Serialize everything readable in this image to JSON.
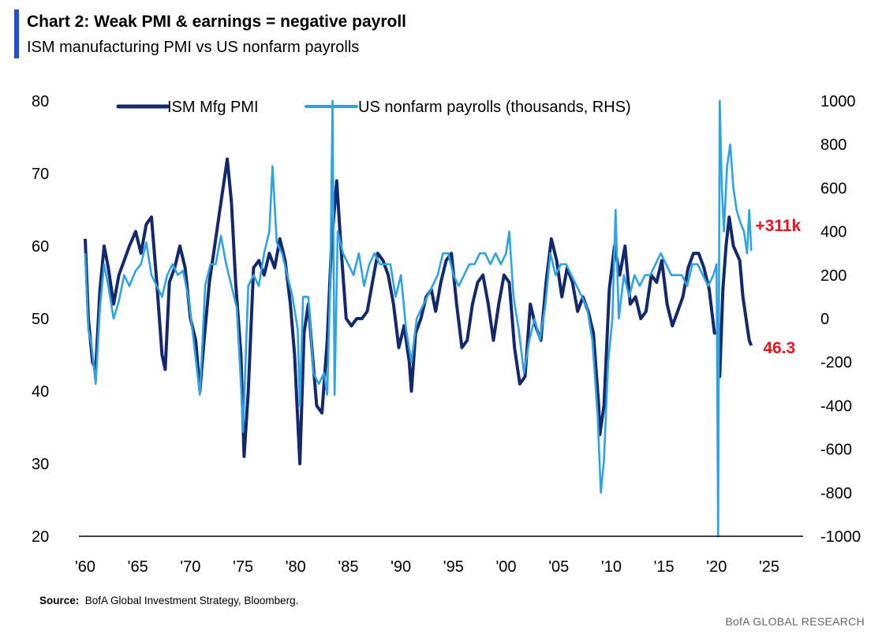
{
  "header": {
    "title": "Chart 2:  Weak PMI & earnings = negative payroll",
    "subtitle": "ISM manufacturing PMI vs US nonfarm payrolls",
    "accent_color": "#1f4fd8"
  },
  "footer": {
    "source_label": "Source:",
    "source_text": "BofA Global Investment Strategy, Bloomberg.",
    "brand": "BofA GLOBAL RESEARCH"
  },
  "chart_data": {
    "type": "line",
    "title": "Chart 2:  Weak PMI & earnings = negative payroll",
    "subtitle": "ISM manufacturing PMI vs US nonfarm payrolls",
    "grid": false,
    "legend_position": "top",
    "x_axis": {
      "type": "date",
      "range": [
        1960,
        2025
      ],
      "tick_values": [
        1960,
        1965,
        1970,
        1975,
        1980,
        1985,
        1990,
        1995,
        2000,
        2005,
        2010,
        2015,
        2020,
        2025
      ],
      "tick_labels": [
        "'60",
        "'65",
        "'70",
        "'75",
        "'80",
        "'85",
        "'90",
        "'95",
        "'00",
        "'05",
        "'10",
        "'15",
        "'20",
        "'25"
      ]
    },
    "y_left": {
      "range": [
        20,
        80
      ],
      "tick_values": [
        20,
        30,
        40,
        50,
        60,
        70,
        80
      ],
      "tick_labels": [
        "20",
        "30",
        "40",
        "50",
        "60",
        "70",
        "80"
      ]
    },
    "y_right": {
      "range": [
        -1000,
        1000
      ],
      "tick_values": [
        -1000,
        -800,
        -600,
        -400,
        -200,
        0,
        200,
        400,
        600,
        800,
        1000
      ],
      "tick_labels": [
        "-1000",
        "-800",
        "-600",
        "-400",
        "-200",
        "0",
        "200",
        "400",
        "600",
        "800",
        "1000"
      ]
    },
    "series": [
      {
        "name": "ISM Mfg PMI",
        "axis": "left",
        "color": "#14286e",
        "points": [
          [
            1960.0,
            61
          ],
          [
            1960.3,
            50
          ],
          [
            1960.7,
            44
          ],
          [
            1961.0,
            43
          ],
          [
            1961.4,
            54
          ],
          [
            1961.8,
            60
          ],
          [
            1962.2,
            57
          ],
          [
            1962.7,
            52
          ],
          [
            1963.2,
            56
          ],
          [
            1963.7,
            58
          ],
          [
            1964.2,
            60
          ],
          [
            1964.8,
            62
          ],
          [
            1965.3,
            59
          ],
          [
            1965.8,
            63
          ],
          [
            1966.3,
            64
          ],
          [
            1966.8,
            55
          ],
          [
            1967.3,
            45
          ],
          [
            1967.6,
            43
          ],
          [
            1968.0,
            55
          ],
          [
            1968.5,
            57
          ],
          [
            1969.0,
            60
          ],
          [
            1969.5,
            57
          ],
          [
            1970.0,
            50
          ],
          [
            1970.5,
            47
          ],
          [
            1970.9,
            40
          ],
          [
            1971.3,
            47
          ],
          [
            1971.8,
            55
          ],
          [
            1972.3,
            60
          ],
          [
            1972.8,
            65
          ],
          [
            1973.2,
            69
          ],
          [
            1973.5,
            72
          ],
          [
            1973.9,
            66
          ],
          [
            1974.3,
            55
          ],
          [
            1974.8,
            45
          ],
          [
            1975.1,
            31
          ],
          [
            1975.5,
            40
          ],
          [
            1976.0,
            57
          ],
          [
            1976.5,
            58
          ],
          [
            1977.0,
            56
          ],
          [
            1977.5,
            59
          ],
          [
            1978.0,
            57
          ],
          [
            1978.5,
            61
          ],
          [
            1979.0,
            58
          ],
          [
            1979.5,
            52
          ],
          [
            1979.9,
            45
          ],
          [
            1980.4,
            30
          ],
          [
            1980.8,
            48
          ],
          [
            1981.2,
            52
          ],
          [
            1981.6,
            45
          ],
          [
            1982.0,
            38
          ],
          [
            1982.5,
            37
          ],
          [
            1983.0,
            47
          ],
          [
            1983.4,
            60
          ],
          [
            1983.9,
            69
          ],
          [
            1984.3,
            60
          ],
          [
            1984.8,
            50
          ],
          [
            1985.3,
            49
          ],
          [
            1985.8,
            50
          ],
          [
            1986.3,
            50
          ],
          [
            1986.8,
            51
          ],
          [
            1987.3,
            55
          ],
          [
            1987.8,
            59
          ],
          [
            1988.3,
            58
          ],
          [
            1988.8,
            56
          ],
          [
            1989.3,
            52
          ],
          [
            1989.8,
            46
          ],
          [
            1990.3,
            49
          ],
          [
            1990.8,
            44
          ],
          [
            1991.0,
            40
          ],
          [
            1991.4,
            48
          ],
          [
            1991.9,
            50
          ],
          [
            1992.4,
            53
          ],
          [
            1992.9,
            54
          ],
          [
            1993.3,
            51
          ],
          [
            1993.8,
            55
          ],
          [
            1994.3,
            58
          ],
          [
            1994.8,
            59
          ],
          [
            1995.3,
            52
          ],
          [
            1995.8,
            46
          ],
          [
            1996.3,
            47
          ],
          [
            1996.8,
            52
          ],
          [
            1997.3,
            55
          ],
          [
            1997.8,
            56
          ],
          [
            1998.3,
            52
          ],
          [
            1998.8,
            47
          ],
          [
            1999.3,
            52
          ],
          [
            1999.8,
            56
          ],
          [
            2000.3,
            55
          ],
          [
            2000.8,
            46
          ],
          [
            2001.3,
            41
          ],
          [
            2001.8,
            42
          ],
          [
            2002.3,
            52
          ],
          [
            2002.8,
            49
          ],
          [
            2003.3,
            47
          ],
          [
            2003.8,
            55
          ],
          [
            2004.3,
            61
          ],
          [
            2004.8,
            58
          ],
          [
            2005.3,
            53
          ],
          [
            2005.8,
            57
          ],
          [
            2006.3,
            55
          ],
          [
            2006.8,
            51
          ],
          [
            2007.3,
            53
          ],
          [
            2007.8,
            51
          ],
          [
            2008.3,
            48
          ],
          [
            2008.8,
            38
          ],
          [
            2008.9,
            34
          ],
          [
            2009.3,
            38
          ],
          [
            2009.8,
            54
          ],
          [
            2010.3,
            60
          ],
          [
            2010.8,
            56
          ],
          [
            2011.3,
            60
          ],
          [
            2011.8,
            52
          ],
          [
            2012.3,
            53
          ],
          [
            2012.8,
            50
          ],
          [
            2013.3,
            51
          ],
          [
            2013.8,
            56
          ],
          [
            2014.3,
            55
          ],
          [
            2014.8,
            58
          ],
          [
            2015.3,
            52
          ],
          [
            2015.8,
            49
          ],
          [
            2016.3,
            51
          ],
          [
            2016.8,
            53
          ],
          [
            2017.3,
            57
          ],
          [
            2017.8,
            59
          ],
          [
            2018.3,
            59
          ],
          [
            2018.8,
            57
          ],
          [
            2019.3,
            54
          ],
          [
            2019.8,
            48
          ],
          [
            2020.2,
            48
          ],
          [
            2020.3,
            42
          ],
          [
            2020.6,
            54
          ],
          [
            2020.9,
            60
          ],
          [
            2021.2,
            64
          ],
          [
            2021.6,
            60
          ],
          [
            2021.9,
            59
          ],
          [
            2022.2,
            58
          ],
          [
            2022.5,
            53
          ],
          [
            2022.9,
            49
          ],
          [
            2023.1,
            47
          ],
          [
            2023.3,
            46.3
          ]
        ]
      },
      {
        "name": "US nonfarm payrolls (thousands, RHS)",
        "axis": "right",
        "color": "#2ea3e4",
        "points": [
          [
            1960.0,
            300
          ],
          [
            1960.3,
            -50
          ],
          [
            1960.6,
            -120
          ],
          [
            1961.0,
            -300
          ],
          [
            1961.4,
            50
          ],
          [
            1961.8,
            250
          ],
          [
            1962.2,
            150
          ],
          [
            1962.7,
            0
          ],
          [
            1963.2,
            80
          ],
          [
            1963.7,
            200
          ],
          [
            1964.2,
            150
          ],
          [
            1964.8,
            220
          ],
          [
            1965.3,
            250
          ],
          [
            1965.8,
            350
          ],
          [
            1966.3,
            200
          ],
          [
            1966.8,
            150
          ],
          [
            1967.3,
            100
          ],
          [
            1967.8,
            200
          ],
          [
            1968.3,
            250
          ],
          [
            1968.8,
            200
          ],
          [
            1969.3,
            220
          ],
          [
            1969.8,
            100
          ],
          [
            1970.3,
            -100
          ],
          [
            1970.9,
            -350
          ],
          [
            1971.4,
            150
          ],
          [
            1971.9,
            250
          ],
          [
            1972.4,
            250
          ],
          [
            1972.9,
            380
          ],
          [
            1973.4,
            250
          ],
          [
            1973.9,
            150
          ],
          [
            1974.4,
            50
          ],
          [
            1974.8,
            -300
          ],
          [
            1975.0,
            -520
          ],
          [
            1975.5,
            150
          ],
          [
            1976.0,
            200
          ],
          [
            1976.5,
            150
          ],
          [
            1977.0,
            300
          ],
          [
            1977.5,
            400
          ],
          [
            1977.8,
            700
          ],
          [
            1978.2,
            350
          ],
          [
            1978.7,
            300
          ],
          [
            1979.2,
            200
          ],
          [
            1979.7,
            100
          ],
          [
            1980.2,
            -50
          ],
          [
            1980.4,
            -400
          ],
          [
            1980.7,
            100
          ],
          [
            1981.2,
            100
          ],
          [
            1981.7,
            -250
          ],
          [
            1982.2,
            -300
          ],
          [
            1982.7,
            -250
          ],
          [
            1983.0,
            -350
          ],
          [
            1983.3,
            200
          ],
          [
            1983.5,
            1000
          ],
          [
            1983.7,
            -350
          ],
          [
            1984.0,
            400
          ],
          [
            1984.5,
            300
          ],
          [
            1985.0,
            250
          ],
          [
            1985.5,
            200
          ],
          [
            1986.0,
            300
          ],
          [
            1986.5,
            150
          ],
          [
            1987.0,
            250
          ],
          [
            1987.5,
            300
          ],
          [
            1988.0,
            250
          ],
          [
            1988.5,
            250
          ],
          [
            1989.0,
            250
          ],
          [
            1989.5,
            100
          ],
          [
            1990.0,
            200
          ],
          [
            1990.5,
            -50
          ],
          [
            1991.0,
            -200
          ],
          [
            1991.5,
            0
          ],
          [
            1992.0,
            50
          ],
          [
            1992.5,
            100
          ],
          [
            1993.0,
            150
          ],
          [
            1993.5,
            200
          ],
          [
            1994.0,
            300
          ],
          [
            1994.5,
            300
          ],
          [
            1995.0,
            200
          ],
          [
            1995.5,
            150
          ],
          [
            1996.0,
            200
          ],
          [
            1996.5,
            250
          ],
          [
            1997.0,
            250
          ],
          [
            1997.5,
            300
          ],
          [
            1998.0,
            300
          ],
          [
            1998.5,
            250
          ],
          [
            1999.0,
            300
          ],
          [
            1999.5,
            250
          ],
          [
            2000.0,
            300
          ],
          [
            2000.3,
            400
          ],
          [
            2000.7,
            100
          ],
          [
            2001.2,
            -50
          ],
          [
            2001.7,
            -250
          ],
          [
            2002.2,
            -100
          ],
          [
            2002.7,
            0
          ],
          [
            2003.2,
            -100
          ],
          [
            2003.7,
            50
          ],
          [
            2004.2,
            300
          ],
          [
            2004.7,
            200
          ],
          [
            2005.2,
            250
          ],
          [
            2005.7,
            250
          ],
          [
            2006.2,
            200
          ],
          [
            2006.7,
            150
          ],
          [
            2007.2,
            100
          ],
          [
            2007.7,
            50
          ],
          [
            2008.2,
            -100
          ],
          [
            2008.7,
            -450
          ],
          [
            2009.0,
            -800
          ],
          [
            2009.3,
            -650
          ],
          [
            2009.7,
            -200
          ],
          [
            2010.1,
            0
          ],
          [
            2010.4,
            500
          ],
          [
            2010.7,
            0
          ],
          [
            2011.2,
            200
          ],
          [
            2011.7,
            100
          ],
          [
            2012.2,
            200
          ],
          [
            2012.7,
            150
          ],
          [
            2013.2,
            200
          ],
          [
            2013.7,
            200
          ],
          [
            2014.2,
            250
          ],
          [
            2014.7,
            300
          ],
          [
            2015.2,
            250
          ],
          [
            2015.7,
            200
          ],
          [
            2016.2,
            200
          ],
          [
            2016.7,
            200
          ],
          [
            2017.2,
            150
          ],
          [
            2017.7,
            250
          ],
          [
            2018.2,
            250
          ],
          [
            2018.7,
            200
          ],
          [
            2019.2,
            150
          ],
          [
            2019.7,
            200
          ],
          [
            2020.0,
            250
          ],
          [
            2020.15,
            -1000
          ],
          [
            2020.3,
            1000
          ],
          [
            2020.5,
            600
          ],
          [
            2020.7,
            400
          ],
          [
            2021.0,
            700
          ],
          [
            2021.3,
            800
          ],
          [
            2021.6,
            600
          ],
          [
            2021.9,
            500
          ],
          [
            2022.2,
            450
          ],
          [
            2022.6,
            400
          ],
          [
            2022.9,
            300
          ],
          [
            2023.1,
            500
          ],
          [
            2023.3,
            311
          ]
        ]
      }
    ],
    "annotations": [
      {
        "text": "+311k",
        "series": "US nonfarm payrolls (thousands, RHS)",
        "color": "#e8141c"
      },
      {
        "text": "46.3",
        "series": "ISM Mfg PMI",
        "color": "#e8141c"
      }
    ]
  }
}
